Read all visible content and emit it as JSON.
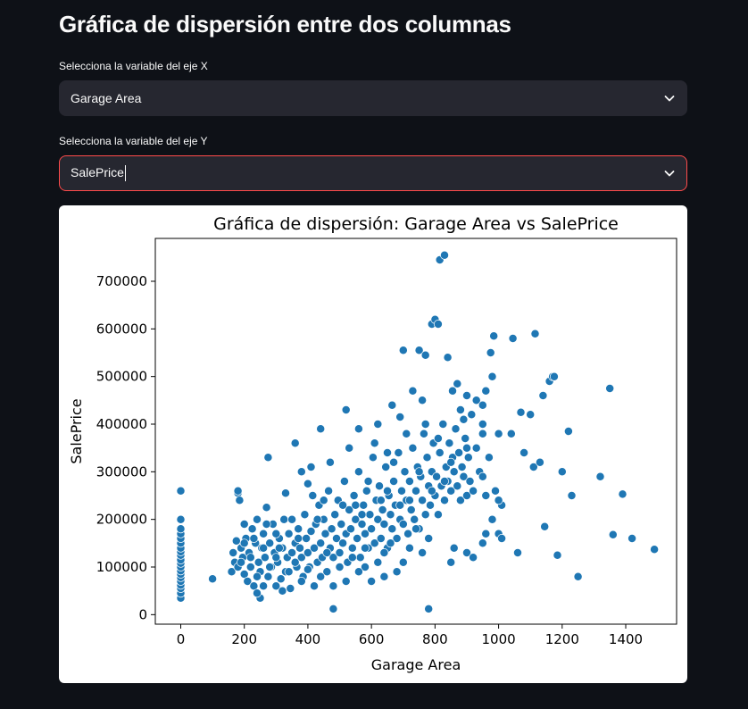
{
  "page": {
    "title": "Gráfica de dispersión entre dos columnas"
  },
  "x_select": {
    "label": "Selecciona la variable del eje X",
    "value": "Garage Area"
  },
  "y_select": {
    "label": "Selecciona la variable del eje Y",
    "value": "SalePrice"
  },
  "colors": {
    "background": "#0e1117",
    "select_bg": "#262730",
    "focus_border": "#ff4b4b",
    "point": "#1f77b4"
  },
  "icons": {
    "dropdown": "chevron-down-icon"
  },
  "chart_data": {
    "type": "scatter",
    "title": "Gráfica de dispersión: Garage Area vs SalePrice",
    "xlabel": "Garage Area",
    "ylabel": "SalePrice",
    "xlim": [
      -80,
      1560
    ],
    "ylim": [
      -20000,
      790000
    ],
    "xticks": [
      0,
      200,
      400,
      600,
      800,
      1000,
      1200,
      1400
    ],
    "yticks": [
      0,
      100000,
      200000,
      300000,
      400000,
      500000,
      600000,
      700000
    ],
    "grid": false,
    "legend": "none",
    "points_note_free": true,
    "points": [
      [
        0,
        35000
      ],
      [
        0,
        45000
      ],
      [
        0,
        55000
      ],
      [
        0,
        62000
      ],
      [
        0,
        70000
      ],
      [
        0,
        78000
      ],
      [
        0,
        85000
      ],
      [
        0,
        92000
      ],
      [
        0,
        100000
      ],
      [
        0,
        108000
      ],
      [
        0,
        115000
      ],
      [
        0,
        125000
      ],
      [
        0,
        132000
      ],
      [
        0,
        140000
      ],
      [
        0,
        150000
      ],
      [
        0,
        160000
      ],
      [
        0,
        170000
      ],
      [
        0,
        180000
      ],
      [
        0,
        200000
      ],
      [
        0,
        260000
      ],
      [
        100,
        75000
      ],
      [
        160,
        90000
      ],
      [
        165,
        130000
      ],
      [
        170,
        110000
      ],
      [
        175,
        155000
      ],
      [
        180,
        100000
      ],
      [
        180,
        255000
      ],
      [
        185,
        240000
      ],
      [
        190,
        140000
      ],
      [
        195,
        120000
      ],
      [
        200,
        85000
      ],
      [
        205,
        160000
      ],
      [
        210,
        70000
      ],
      [
        215,
        130000
      ],
      [
        220,
        100000
      ],
      [
        225,
        180000
      ],
      [
        230,
        60000
      ],
      [
        235,
        150000
      ],
      [
        240,
        200000
      ],
      [
        245,
        110000
      ],
      [
        250,
        90000
      ],
      [
        250,
        35000
      ],
      [
        255,
        140000
      ],
      [
        260,
        170000
      ],
      [
        265,
        120000
      ],
      [
        270,
        225000
      ],
      [
        275,
        80000
      ],
      [
        280,
        150000
      ],
      [
        285,
        100000
      ],
      [
        290,
        190000
      ],
      [
        295,
        130000
      ],
      [
        300,
        60000
      ],
      [
        305,
        110000
      ],
      [
        310,
        160000
      ],
      [
        315,
        75000
      ],
      [
        320,
        140000
      ],
      [
        325,
        200000
      ],
      [
        330,
        90000
      ],
      [
        335,
        120000
      ],
      [
        340,
        170000
      ],
      [
        345,
        55000
      ],
      [
        350,
        130000
      ],
      [
        360,
        150000
      ],
      [
        365,
        100000
      ],
      [
        370,
        180000
      ],
      [
        375,
        140000
      ],
      [
        380,
        120000
      ],
      [
        385,
        80000
      ],
      [
        390,
        210000
      ],
      [
        395,
        160000
      ],
      [
        400,
        130000
      ],
      [
        405,
        100000
      ],
      [
        410,
        175000
      ],
      [
        415,
        250000
      ],
      [
        420,
        140000
      ],
      [
        425,
        190000
      ],
      [
        430,
        110000
      ],
      [
        435,
        230000
      ],
      [
        440,
        150000
      ],
      [
        445,
        120000
      ],
      [
        450,
        200000
      ],
      [
        455,
        170000
      ],
      [
        460,
        90000
      ],
      [
        465,
        260000
      ],
      [
        470,
        140000
      ],
      [
        475,
        180000
      ],
      [
        480,
        120000
      ],
      [
        485,
        210000
      ],
      [
        490,
        160000
      ],
      [
        495,
        240000
      ],
      [
        500,
        130000
      ],
      [
        505,
        190000
      ],
      [
        510,
        150000
      ],
      [
        515,
        280000
      ],
      [
        520,
        170000
      ],
      [
        525,
        110000
      ],
      [
        530,
        220000
      ],
      [
        535,
        180000
      ],
      [
        540,
        140000
      ],
      [
        545,
        250000
      ],
      [
        550,
        200000
      ],
      [
        555,
        160000
      ],
      [
        560,
        300000
      ],
      [
        565,
        120000
      ],
      [
        570,
        190000
      ],
      [
        575,
        230000
      ],
      [
        580,
        170000
      ],
      [
        585,
        260000
      ],
      [
        590,
        140000
      ],
      [
        595,
        210000
      ],
      [
        600,
        180000
      ],
      [
        605,
        330000
      ],
      [
        610,
        150000
      ],
      [
        615,
        240000
      ],
      [
        620,
        200000
      ],
      [
        625,
        270000
      ],
      [
        630,
        160000
      ],
      [
        635,
        220000
      ],
      [
        640,
        190000
      ],
      [
        645,
        310000
      ],
      [
        650,
        140000
      ],
      [
        655,
        250000
      ],
      [
        660,
        210000
      ],
      [
        665,
        180000
      ],
      [
        670,
        280000
      ],
      [
        675,
        230000
      ],
      [
        680,
        160000
      ],
      [
        685,
        340000
      ],
      [
        690,
        200000
      ],
      [
        695,
        260000
      ],
      [
        700,
        190000
      ],
      [
        705,
        300000
      ],
      [
        710,
        240000
      ],
      [
        715,
        170000
      ],
      [
        720,
        280000
      ],
      [
        725,
        220000
      ],
      [
        730,
        350000
      ],
      [
        735,
        200000
      ],
      [
        740,
        260000
      ],
      [
        745,
        310000
      ],
      [
        750,
        180000
      ],
      [
        755,
        290000
      ],
      [
        760,
        240000
      ],
      [
        765,
        380000
      ],
      [
        770,
        210000
      ],
      [
        775,
        330000
      ],
      [
        780,
        270000
      ],
      [
        785,
        230000
      ],
      [
        790,
        300000
      ],
      [
        795,
        360000
      ],
      [
        800,
        250000
      ],
      [
        805,
        290000
      ],
      [
        810,
        210000
      ],
      [
        815,
        340000
      ],
      [
        820,
        270000
      ],
      [
        825,
        400000
      ],
      [
        830,
        240000
      ],
      [
        835,
        310000
      ],
      [
        840,
        280000
      ],
      [
        845,
        360000
      ],
      [
        850,
        260000
      ],
      [
        855,
        330000
      ],
      [
        860,
        300000
      ],
      [
        865,
        390000
      ],
      [
        870,
        270000
      ],
      [
        875,
        340000
      ],
      [
        880,
        240000
      ],
      [
        885,
        310000
      ],
      [
        890,
        290000
      ],
      [
        895,
        370000
      ],
      [
        900,
        250000
      ],
      [
        905,
        330000
      ],
      [
        910,
        280000
      ],
      [
        915,
        420000
      ],
      [
        920,
        260000
      ],
      [
        930,
        350000
      ],
      [
        940,
        300000
      ],
      [
        950,
        380000
      ],
      [
        960,
        250000
      ],
      [
        970,
        330000
      ],
      [
        980,
        200000
      ],
      [
        990,
        260000
      ],
      [
        1000,
        380000
      ],
      [
        1010,
        230000
      ],
      [
        180,
        260000
      ],
      [
        200,
        190000
      ],
      [
        240,
        45000
      ],
      [
        260,
        60000
      ],
      [
        275,
        330000
      ],
      [
        330,
        255000
      ],
      [
        360,
        360000
      ],
      [
        380,
        300000
      ],
      [
        400,
        275000
      ],
      [
        440,
        390000
      ],
      [
        480,
        12000
      ],
      [
        520,
        430000
      ],
      [
        560,
        390000
      ],
      [
        580,
        100000
      ],
      [
        620,
        400000
      ],
      [
        640,
        130000
      ],
      [
        650,
        340000
      ],
      [
        665,
        440000
      ],
      [
        690,
        415000
      ],
      [
        700,
        555000
      ],
      [
        730,
        470000
      ],
      [
        750,
        555000
      ],
      [
        760,
        450000
      ],
      [
        770,
        545000
      ],
      [
        790,
        610000
      ],
      [
        800,
        620000
      ],
      [
        810,
        610000
      ],
      [
        815,
        745000
      ],
      [
        830,
        755000
      ],
      [
        840,
        540000
      ],
      [
        855,
        470000
      ],
      [
        870,
        485000
      ],
      [
        880,
        430000
      ],
      [
        900,
        460000
      ],
      [
        930,
        450000
      ],
      [
        950,
        400000
      ],
      [
        960,
        470000
      ],
      [
        975,
        550000
      ],
      [
        980,
        500000
      ],
      [
        985,
        585000
      ],
      [
        1000,
        170000
      ],
      [
        1040,
        380000
      ],
      [
        1045,
        580000
      ],
      [
        1060,
        130000
      ],
      [
        1070,
        425000
      ],
      [
        1080,
        340000
      ],
      [
        1100,
        420000
      ],
      [
        1110,
        310000
      ],
      [
        1115,
        590000
      ],
      [
        1130,
        320000
      ],
      [
        1140,
        460000
      ],
      [
        1145,
        185000
      ],
      [
        1160,
        490000
      ],
      [
        1170,
        500000
      ],
      [
        1175,
        500000
      ],
      [
        1185,
        125000
      ],
      [
        1200,
        300000
      ],
      [
        1220,
        385000
      ],
      [
        1230,
        250000
      ],
      [
        1250,
        80000
      ],
      [
        1320,
        290000
      ],
      [
        1350,
        475000
      ],
      [
        1360,
        168000
      ],
      [
        1390,
        253000
      ],
      [
        1420,
        160000
      ],
      [
        1490,
        137000
      ],
      [
        780,
        12000
      ],
      [
        900,
        130000
      ],
      [
        920,
        120000
      ],
      [
        950,
        150000
      ],
      [
        960,
        170000
      ],
      [
        1000,
        240000
      ],
      [
        1010,
        160000
      ],
      [
        850,
        110000
      ],
      [
        860,
        140000
      ],
      [
        780,
        160000
      ],
      [
        760,
        130000
      ],
      [
        740,
        180000
      ],
      [
        720,
        140000
      ],
      [
        700,
        110000
      ],
      [
        680,
        90000
      ],
      [
        660,
        150000
      ],
      [
        640,
        80000
      ],
      [
        620,
        110000
      ],
      [
        600,
        70000
      ],
      [
        580,
        140000
      ],
      [
        560,
        90000
      ],
      [
        540,
        120000
      ],
      [
        520,
        70000
      ],
      [
        500,
        100000
      ],
      [
        480,
        60000
      ],
      [
        460,
        130000
      ],
      [
        440,
        80000
      ],
      [
        420,
        60000
      ],
      [
        400,
        95000
      ],
      [
        380,
        70000
      ],
      [
        360,
        110000
      ],
      [
        340,
        90000
      ],
      [
        320,
        50000
      ],
      [
        300,
        120000
      ],
      [
        280,
        100000
      ],
      [
        260,
        140000
      ],
      [
        240,
        80000
      ],
      [
        220,
        120000
      ],
      [
        200,
        150000
      ],
      [
        300,
        170000
      ],
      [
        350,
        200000
      ],
      [
        450,
        240000
      ],
      [
        550,
        230000
      ],
      [
        650,
        260000
      ],
      [
        750,
        300000
      ],
      [
        850,
        320000
      ],
      [
        950,
        290000
      ],
      [
        410,
        310000
      ],
      [
        470,
        320000
      ],
      [
        530,
        350000
      ],
      [
        590,
        280000
      ],
      [
        610,
        360000
      ],
      [
        670,
        320000
      ],
      [
        710,
        380000
      ],
      [
        770,
        400000
      ],
      [
        810,
        370000
      ],
      [
        890,
        410000
      ],
      [
        950,
        440000
      ],
      [
        900,
        350000
      ],
      [
        830,
        280000
      ],
      [
        790,
        260000
      ],
      [
        720,
        240000
      ],
      [
        690,
        230000
      ],
      [
        630,
        240000
      ],
      [
        570,
        210000
      ],
      [
        510,
        230000
      ],
      [
        430,
        200000
      ],
      [
        370,
        160000
      ],
      [
        310,
        140000
      ],
      [
        270,
        190000
      ],
      [
        230,
        160000
      ],
      [
        190,
        110000
      ]
    ]
  }
}
